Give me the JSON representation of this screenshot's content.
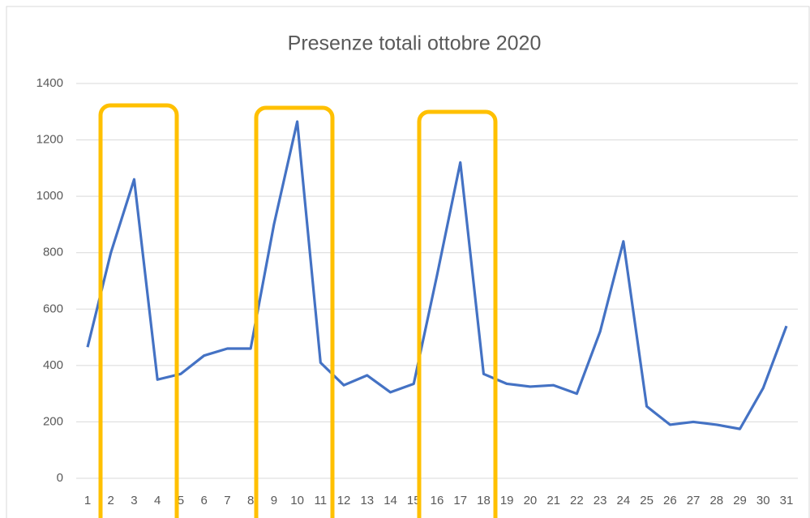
{
  "chart_data": {
    "type": "line",
    "title": "Presenze totali ottobre 2020",
    "categories": [
      "1",
      "2",
      "3",
      "4",
      "5",
      "6",
      "7",
      "8",
      "9",
      "10",
      "11",
      "12",
      "13",
      "14",
      "15",
      "16",
      "17",
      "18",
      "19",
      "20",
      "21",
      "22",
      "23",
      "24",
      "25",
      "26",
      "27",
      "28",
      "29",
      "30",
      "31"
    ],
    "series": [
      {
        "name": "Presenze",
        "color": "#4472c4",
        "values": [
          465,
          800,
          1060,
          350,
          370,
          435,
          460,
          460,
          900,
          1265,
          410,
          330,
          365,
          305,
          335,
          720,
          1120,
          370,
          335,
          325,
          330,
          300,
          520,
          840,
          255,
          190,
          200,
          190,
          175,
          320,
          540
        ]
      }
    ],
    "ylim": [
      0,
      1400
    ],
    "yticks": [
      0,
      200,
      400,
      600,
      800,
      1000,
      1200,
      1400
    ],
    "grid": true
  }
}
